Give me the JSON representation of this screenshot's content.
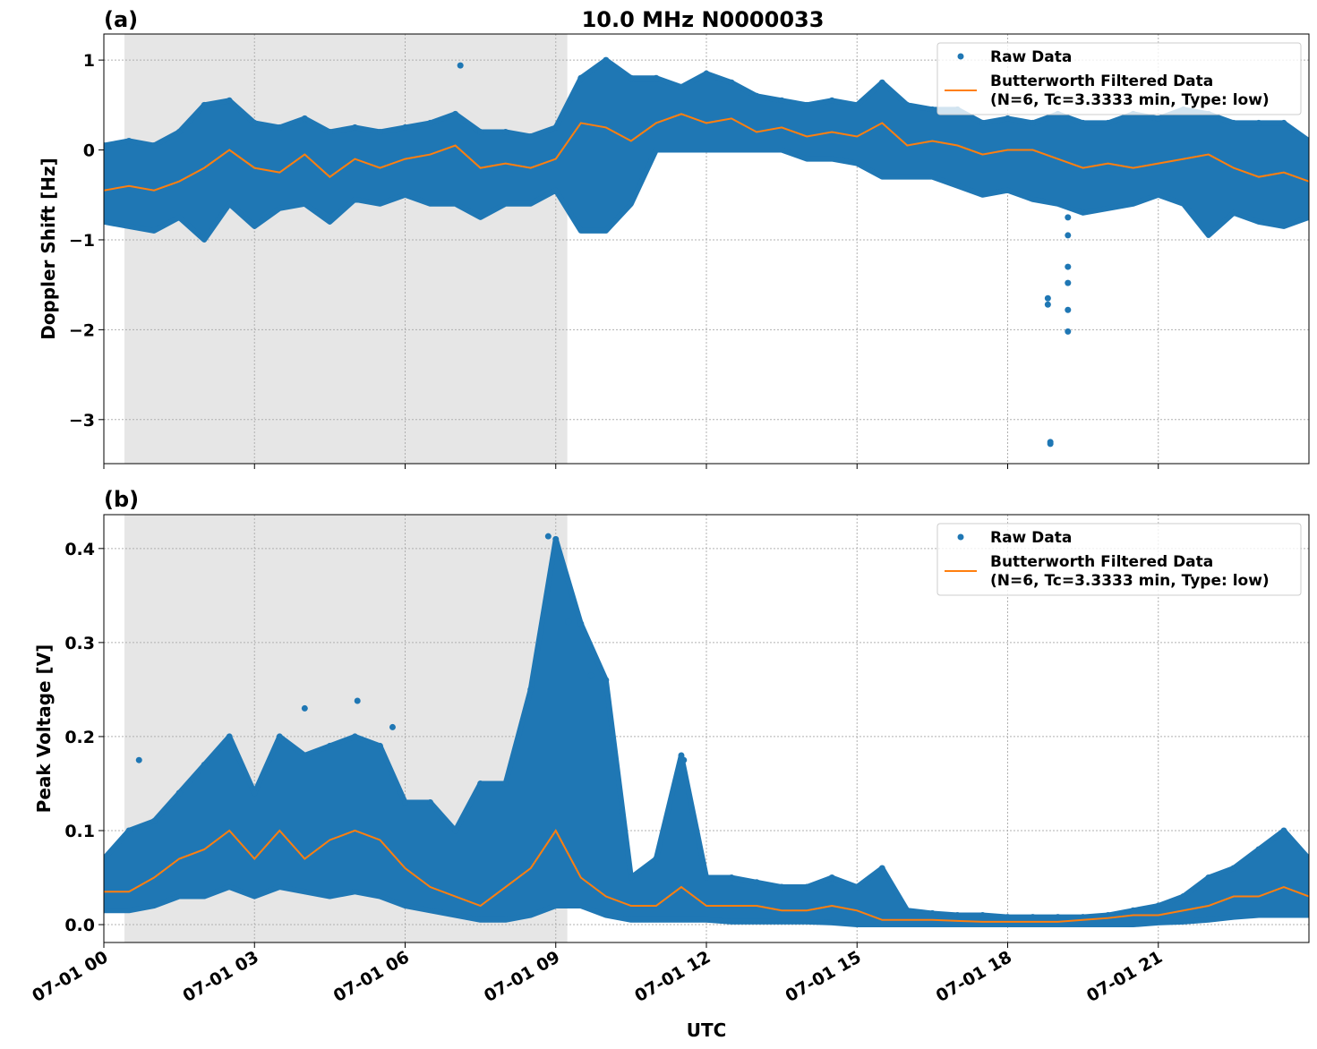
{
  "chart_data": [
    {
      "type": "scatter",
      "panel_label": "(a)",
      "title": "10.0 MHz N0000033",
      "xlabel": "",
      "ylabel": "Doppler Shift [Hz]",
      "xlim_hours": [
        0,
        24
      ],
      "ylim": [
        -3.49,
        1.29
      ],
      "yticks": [
        1,
        0,
        -1,
        -2,
        -3
      ],
      "ytick_labels": [
        "1",
        "0",
        "−1",
        "−2",
        "−3"
      ],
      "grid": true,
      "shaded_interval_hours": [
        0.41,
        9.23
      ],
      "legend": {
        "placement": "top-right",
        "entries": [
          "Raw Data",
          "Butterworth Filtered Data",
          "(N=6, Tc=3.3333 min, Type: low)"
        ]
      },
      "colors": {
        "raw": "#1f77b4",
        "filtered": "#ff7f0e",
        "shade": "#e6e6e6"
      },
      "hours": [
        0,
        0.5,
        1,
        1.5,
        2,
        2.5,
        3,
        3.5,
        4,
        4.5,
        5,
        5.5,
        6,
        6.5,
        7,
        7.5,
        8,
        8.5,
        9,
        9.5,
        10,
        10.5,
        11,
        11.5,
        12,
        12.5,
        13,
        13.5,
        14,
        14.5,
        15,
        15.5,
        16,
        16.5,
        17,
        17.5,
        18,
        18.5,
        19,
        19.5,
        20,
        20.5,
        21,
        21.5,
        22,
        22.5,
        23,
        23.5,
        24
      ],
      "filtered": [
        -0.45,
        -0.4,
        -0.45,
        -0.35,
        -0.2,
        0,
        -0.2,
        -0.25,
        -0.05,
        -0.3,
        -0.1,
        -0.2,
        -0.1,
        -0.05,
        0.05,
        -0.2,
        -0.15,
        -0.2,
        -0.1,
        0.3,
        0.25,
        0.1,
        0.3,
        0.4,
        0.3,
        0.35,
        0.2,
        0.25,
        0.15,
        0.2,
        0.15,
        0.3,
        0.05,
        0.1,
        0.05,
        -0.05,
        0,
        0,
        -0.1,
        -0.2,
        -0.15,
        -0.2,
        -0.15,
        -0.1,
        -0.05,
        -0.2,
        -0.3,
        -0.25,
        -0.35
      ],
      "raw_max": [
        0.05,
        0.1,
        0.05,
        0.2,
        0.5,
        0.55,
        0.3,
        0.25,
        0.35,
        0.2,
        0.25,
        0.2,
        0.25,
        0.3,
        0.4,
        0.2,
        0.2,
        0.15,
        0.25,
        0.8,
        1.0,
        0.8,
        0.8,
        0.7,
        0.85,
        0.75,
        0.6,
        0.55,
        0.5,
        0.55,
        0.5,
        0.75,
        0.5,
        0.45,
        0.45,
        0.3,
        0.35,
        0.3,
        0.4,
        0.3,
        0.3,
        0.4,
        0.35,
        0.45,
        0.4,
        0.3,
        0.3,
        0.3,
        0.1
      ],
      "raw_min": [
        -0.8,
        -0.85,
        -0.9,
        -0.75,
        -1.0,
        -0.6,
        -0.85,
        -0.65,
        -0.6,
        -0.8,
        -0.55,
        -0.6,
        -0.5,
        -0.6,
        -0.6,
        -0.75,
        -0.6,
        -0.6,
        -0.45,
        -0.9,
        -0.9,
        -0.6,
        0,
        0,
        0,
        0,
        0,
        0,
        -0.1,
        -0.1,
        -0.15,
        -0.3,
        -0.3,
        -0.3,
        -0.4,
        -0.5,
        -0.45,
        -0.55,
        -0.6,
        -0.7,
        -0.65,
        -0.6,
        -0.5,
        -0.6,
        -0.95,
        -0.7,
        -0.8,
        -0.85,
        -0.75
      ],
      "outliers": [
        [
          7.1,
          0.94
        ],
        [
          18.8,
          -1.65
        ],
        [
          18.8,
          -1.72
        ],
        [
          18.85,
          -3.25
        ],
        [
          18.85,
          -3.27
        ],
        [
          19.2,
          -0.75
        ],
        [
          19.2,
          -0.95
        ],
        [
          19.2,
          -1.3
        ],
        [
          19.2,
          -1.48
        ],
        [
          19.2,
          -1.78
        ],
        [
          19.2,
          -2.02
        ]
      ]
    },
    {
      "type": "scatter",
      "panel_label": "(b)",
      "xlabel": "UTC",
      "ylabel": "Peak Voltage [V]",
      "xlim_hours": [
        0,
        24
      ],
      "ylim": [
        -0.019,
        0.436
      ],
      "yticks": [
        0.0,
        0.1,
        0.2,
        0.3,
        0.4
      ],
      "ytick_labels": [
        "0.0",
        "0.1",
        "0.2",
        "0.3",
        "0.4"
      ],
      "xticks_hours": [
        0,
        3,
        6,
        9,
        12,
        15,
        18,
        21
      ],
      "xtick_labels": [
        "07-01 00",
        "07-01 03",
        "07-01 06",
        "07-01 09",
        "07-01 12",
        "07-01 15",
        "07-01 18",
        "07-01 21"
      ],
      "grid": true,
      "shaded_interval_hours": [
        0.41,
        9.23
      ],
      "legend": {
        "placement": "top-right",
        "entries": [
          "Raw Data",
          "Butterworth Filtered Data",
          "(N=6, Tc=3.3333 min, Type: low)"
        ]
      },
      "colors": {
        "raw": "#1f77b4",
        "filtered": "#ff7f0e",
        "shade": "#e6e6e6"
      },
      "hours": [
        0,
        0.5,
        1,
        1.5,
        2,
        2.5,
        3,
        3.5,
        4,
        4.5,
        5,
        5.5,
        6,
        6.5,
        7,
        7.5,
        8,
        8.5,
        9,
        9.5,
        10,
        10.5,
        11,
        11.5,
        12,
        12.5,
        13,
        13.5,
        14,
        14.5,
        15,
        15.5,
        16,
        16.5,
        17,
        17.5,
        18,
        18.5,
        19,
        19.5,
        20,
        20.5,
        21,
        21.5,
        22,
        22.5,
        23,
        23.5,
        24
      ],
      "filtered": [
        0.035,
        0.035,
        0.05,
        0.07,
        0.08,
        0.1,
        0.07,
        0.1,
        0.07,
        0.09,
        0.1,
        0.09,
        0.06,
        0.04,
        0.03,
        0.02,
        0.04,
        0.06,
        0.1,
        0.05,
        0.03,
        0.02,
        0.02,
        0.04,
        0.02,
        0.02,
        0.02,
        0.015,
        0.015,
        0.02,
        0.015,
        0.005,
        0.005,
        0.005,
        0.004,
        0.003,
        0.003,
        0.003,
        0.003,
        0.005,
        0.007,
        0.01,
        0.01,
        0.015,
        0.02,
        0.03,
        0.03,
        0.04,
        0.03
      ],
      "raw_max": [
        0.07,
        0.1,
        0.11,
        0.14,
        0.17,
        0.2,
        0.14,
        0.2,
        0.18,
        0.19,
        0.2,
        0.19,
        0.13,
        0.13,
        0.1,
        0.15,
        0.15,
        0.25,
        0.41,
        0.32,
        0.26,
        0.05,
        0.07,
        0.18,
        0.05,
        0.05,
        0.045,
        0.04,
        0.04,
        0.05,
        0.04,
        0.06,
        0.015,
        0.012,
        0.01,
        0.01,
        0.008,
        0.008,
        0.008,
        0.008,
        0.01,
        0.015,
        0.02,
        0.03,
        0.05,
        0.06,
        0.08,
        0.1,
        0.07
      ],
      "raw_min": [
        0.015,
        0.015,
        0.02,
        0.03,
        0.03,
        0.04,
        0.03,
        0.04,
        0.035,
        0.03,
        0.035,
        0.03,
        0.02,
        0.015,
        0.01,
        0.005,
        0.005,
        0.01,
        0.02,
        0.02,
        0.01,
        0.005,
        0.005,
        0.005,
        0.005,
        0.003,
        0.003,
        0.003,
        0.003,
        0.002,
        0,
        0,
        0,
        0,
        0,
        0,
        0,
        0,
        0,
        0,
        0,
        0,
        0.002,
        0.003,
        0.005,
        0.008,
        0.01,
        0.01,
        0.01
      ],
      "outliers": [
        [
          0.7,
          0.175
        ],
        [
          4.0,
          0.23
        ],
        [
          5.05,
          0.238
        ],
        [
          5.75,
          0.21
        ],
        [
          8.85,
          0.413
        ],
        [
          9.25,
          0.322
        ],
        [
          9.7,
          0.265
        ],
        [
          11.55,
          0.175
        ]
      ]
    }
  ]
}
